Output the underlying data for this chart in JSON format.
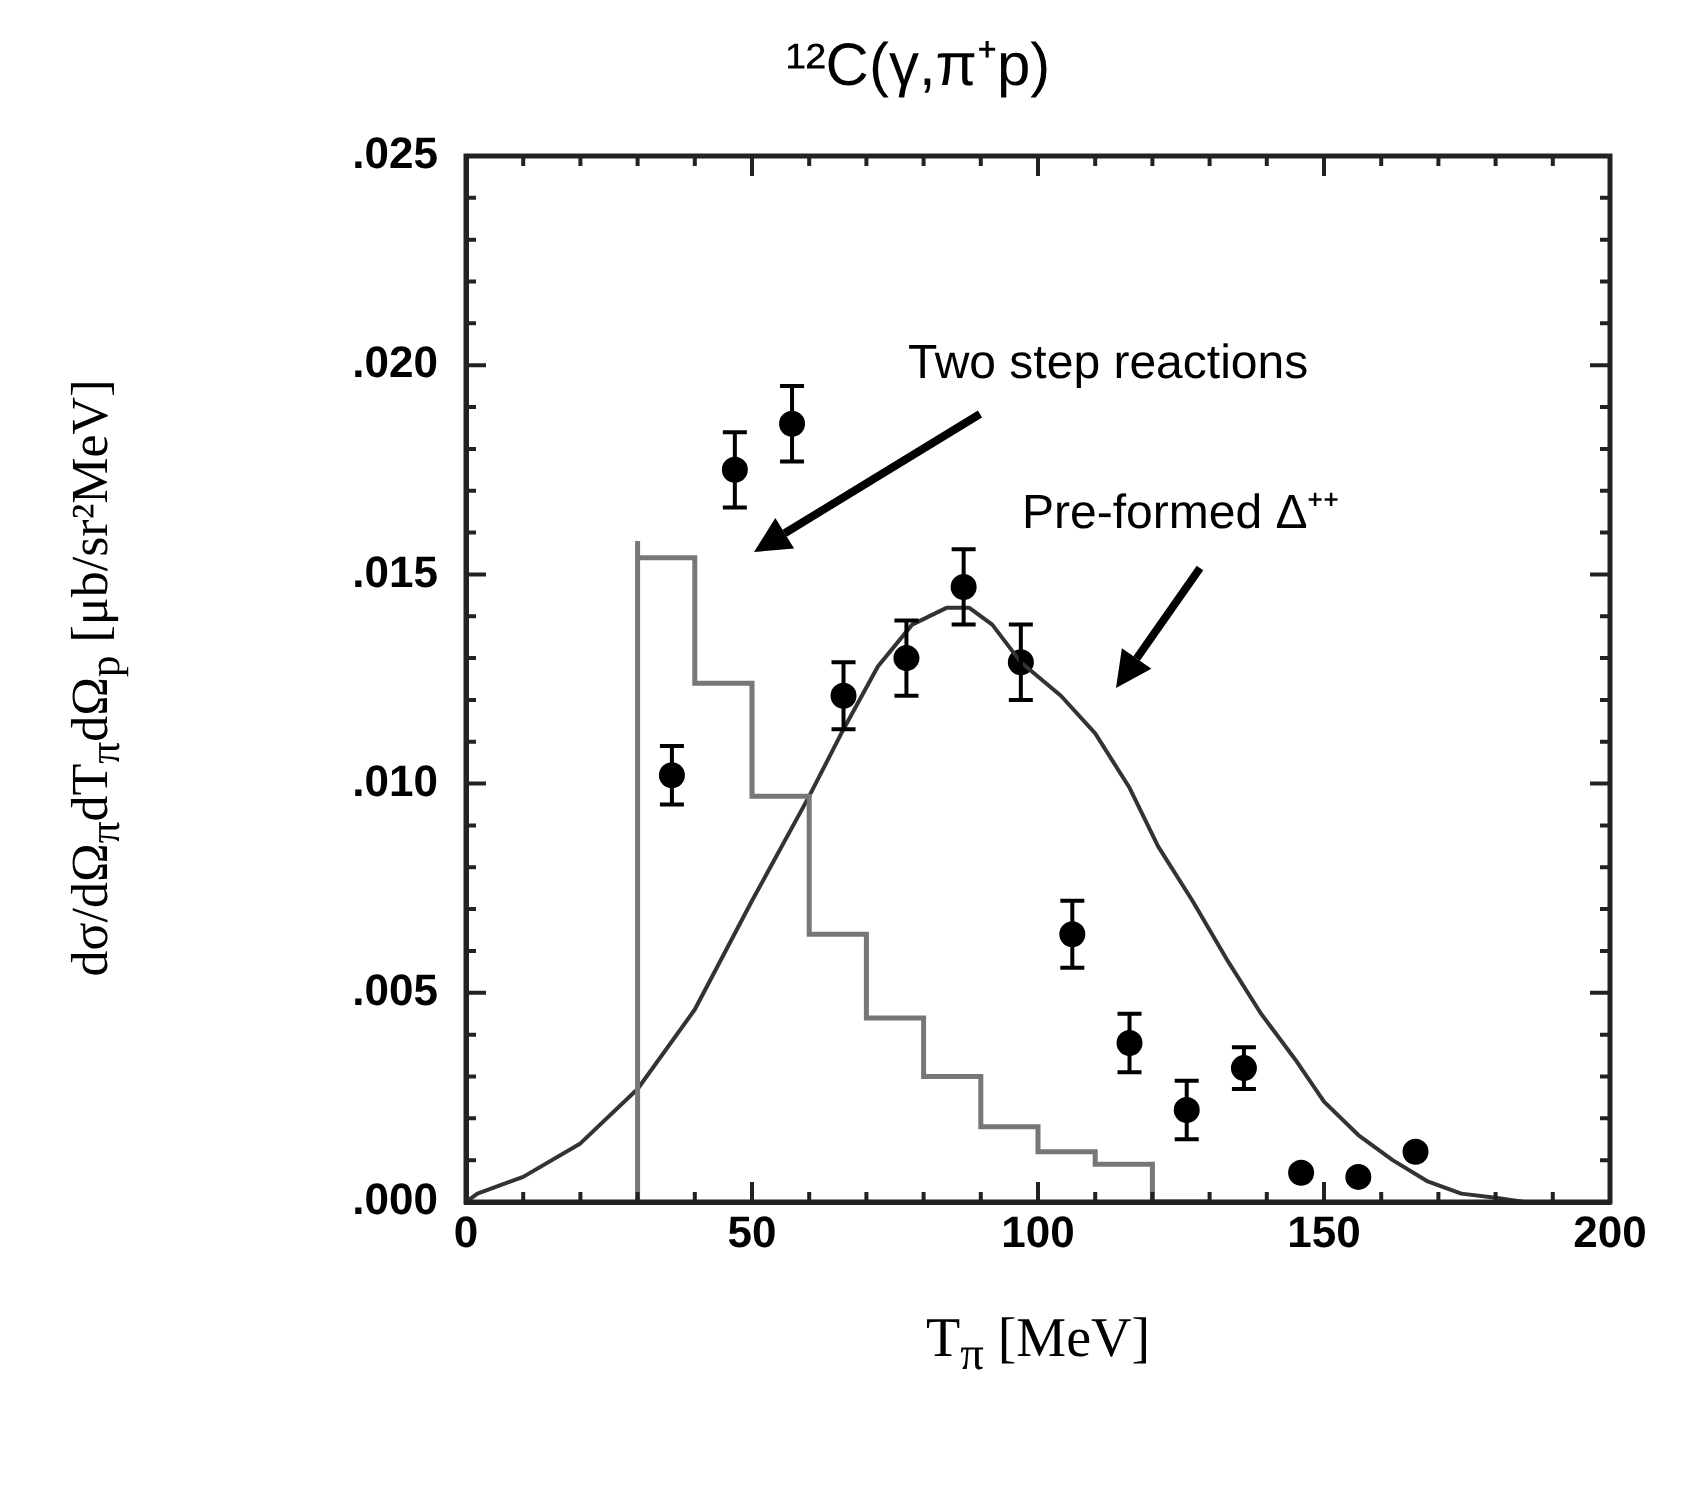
{
  "chart_data": {
    "type": "scatter",
    "title": "¹²C(γ,π⁺p)",
    "xlabel": "T$_{π}$ [MeV]",
    "ylabel": "dσ/dΩ$_{π}$dT$_{π}$dΩ$_{p}$ [μb/sr²MeV]",
    "xlim": [
      0,
      200
    ],
    "xticks": [
      0,
      50,
      100,
      150,
      200
    ],
    "ylim": [
      0,
      0.025
    ],
    "yticks": [
      {
        "value": 0,
        "label": ".000"
      },
      {
        "value": 0.005,
        "label": ".005"
      },
      {
        "value": 0.01,
        "label": ".010"
      },
      {
        "value": 0.015,
        "label": ".015"
      },
      {
        "value": 0.02,
        "label": ".020"
      },
      {
        "value": 0.025,
        "label": ".025"
      }
    ],
    "grid": false,
    "legend": false,
    "series": [
      {
        "type": "step",
        "color": "#777777",
        "x": [
          30,
          30,
          40,
          50,
          60,
          70,
          80,
          90,
          100,
          110,
          120,
          130
        ],
        "values": [
          0,
          0.0158,
          0.0154,
          0.0124,
          0.0097,
          0.0064,
          0.0044,
          0.003,
          0.0018,
          0.0012,
          0.0009,
          0
        ]
      },
      {
        "type": "line",
        "color": "#333333",
        "marker": "none",
        "x": [
          0,
          2,
          10,
          20,
          30,
          40,
          50,
          60,
          66,
          72,
          78,
          84,
          88,
          92,
          97,
          104,
          110,
          116,
          121,
          127,
          133,
          139,
          145,
          150,
          156,
          162,
          168,
          174,
          180,
          185
        ],
        "values": [
          0,
          0.0002,
          0.0006,
          0.0014,
          0.0027,
          0.0046,
          0.0072,
          0.0097,
          0.0113,
          0.0128,
          0.0138,
          0.0142,
          0.0142,
          0.0138,
          0.0129,
          0.0121,
          0.0112,
          0.0099,
          0.0085,
          0.0072,
          0.0058,
          0.0045,
          0.0034,
          0.0024,
          0.0016,
          0.001,
          0.0005,
          0.0002,
          0.0001,
          0
        ]
      },
      {
        "type": "scatter",
        "color": "#000000",
        "marker": "circle",
        "x": [
          36,
          47,
          57,
          66,
          77,
          87,
          97,
          106,
          116,
          126,
          136,
          146,
          156,
          166
        ],
        "values": [
          0.0102,
          0.0175,
          0.0186,
          0.0121,
          0.013,
          0.0147,
          0.0129,
          0.0064,
          0.0038,
          0.0022,
          0.0032,
          0.0007,
          0.0006,
          0.0012
        ],
        "errors": [
          0.0007,
          0.0009,
          0.0009,
          0.0008,
          0.0009,
          0.0009,
          0.0009,
          0.0008,
          0.0007,
          0.0007,
          0.0005,
          null,
          null,
          null
        ]
      }
    ],
    "annotations": [
      "Two step reactions",
      "Pre-formed Δ⁺⁺"
    ]
  }
}
